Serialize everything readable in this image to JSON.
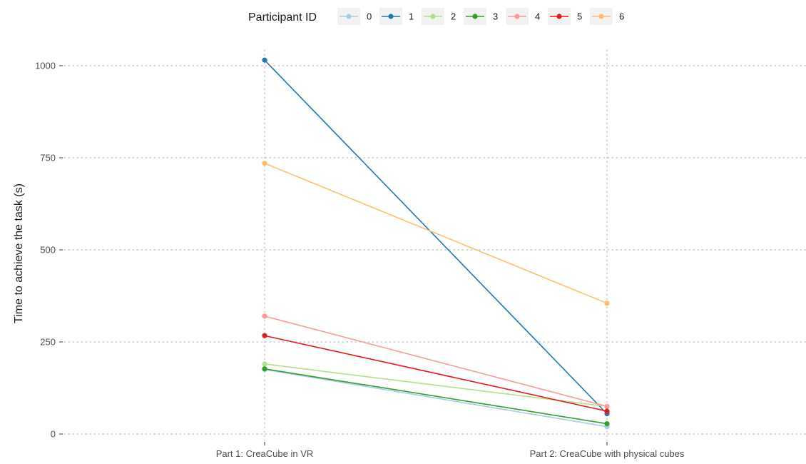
{
  "chart_data": {
    "type": "line",
    "ylabel": "Time to achieve the task (s)",
    "xlabel": "",
    "categories": [
      "Part 1: CreaCube in VR",
      "Part 2: CreaCube with physical cubes"
    ],
    "ylim": [
      -10,
      1060
    ],
    "yticks": [
      0,
      250,
      500,
      750,
      1000
    ],
    "grid": "dotted",
    "legend": {
      "title": "Participant ID",
      "placement": "top"
    },
    "series": [
      {
        "name": "0",
        "color": "#a6cee3",
        "values": [
          175,
          20
        ]
      },
      {
        "name": "1",
        "color": "#1f78b4",
        "values": [
          1015,
          55
        ]
      },
      {
        "name": "2",
        "color": "#b2df8a",
        "values": [
          190,
          75
        ]
      },
      {
        "name": "3",
        "color": "#33a02c",
        "values": [
          177,
          28
        ]
      },
      {
        "name": "4",
        "color": "#fb9a99",
        "values": [
          320,
          75
        ]
      },
      {
        "name": "5",
        "color": "#e31a1c",
        "values": [
          267,
          62
        ]
      },
      {
        "name": "6",
        "color": "#fdbf6f",
        "values": [
          735,
          355
        ]
      }
    ]
  }
}
